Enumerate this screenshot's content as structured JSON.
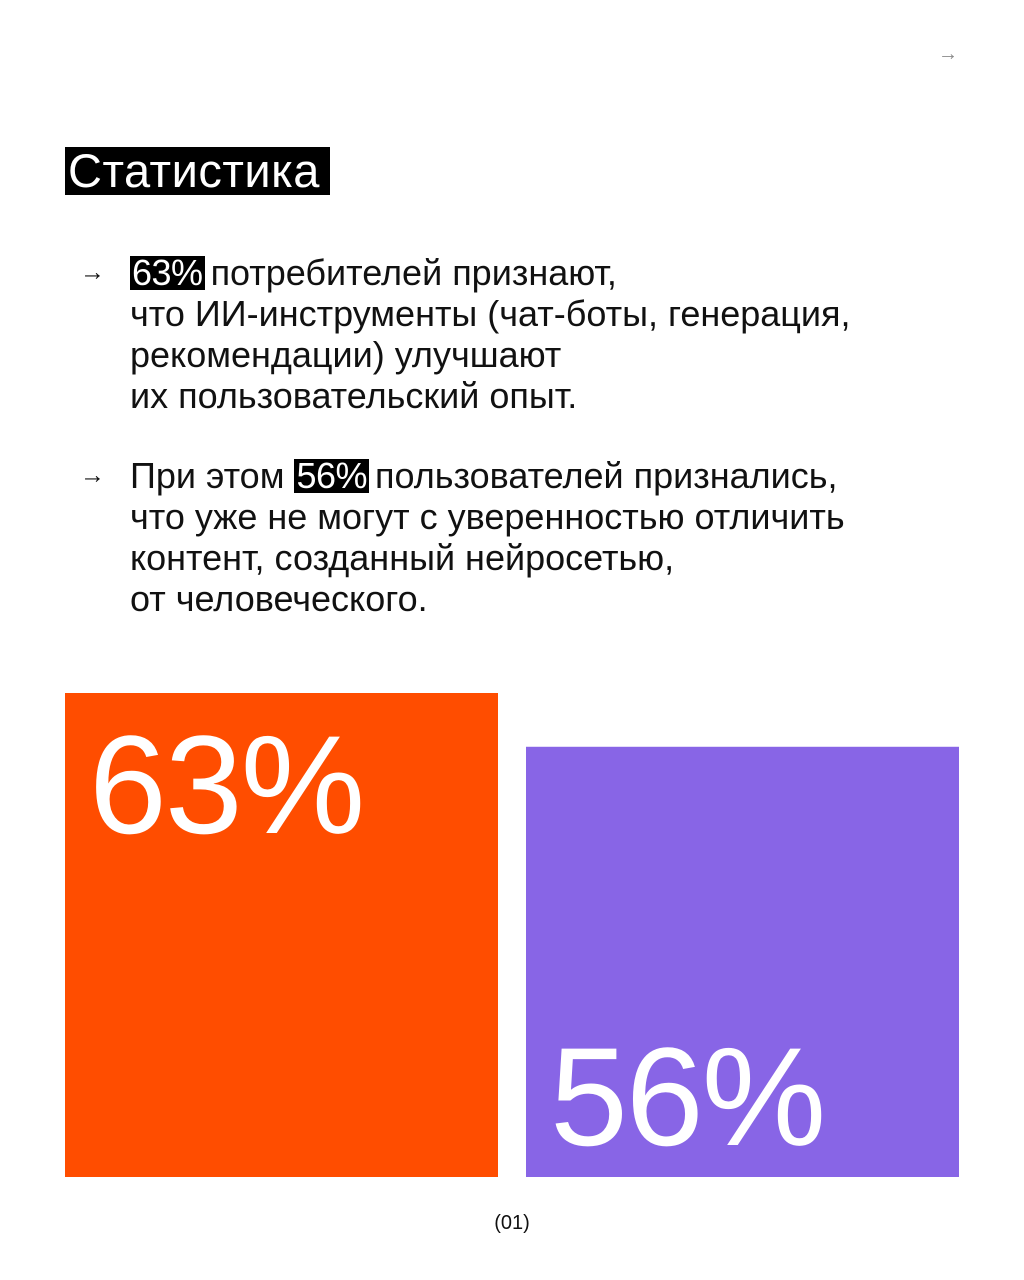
{
  "nav": {
    "next_icon": "arrow-right-icon",
    "next_glyph": "→"
  },
  "title": "Статистика",
  "bullets": [
    {
      "icon": "arrow-right-icon",
      "glyph": "→",
      "highlight": "63%",
      "lead": "",
      "line1_rest": "потребителей признают,",
      "lines": [
        "что ИИ-инструменты (чат-боты, генерация,",
        "рекомендации) улучшают",
        "их пользовательский опыт."
      ]
    },
    {
      "icon": "arrow-right-icon",
      "glyph": "→",
      "lead": "При этом",
      "highlight": "56%",
      "line1_rest": "пользователей признались,",
      "lines": [
        "что уже не могут с уверенностью отличить",
        "контент, созданный нейросетью,",
        "от человеческого."
      ]
    }
  ],
  "chart_data": {
    "type": "bar",
    "categories": [
      "63%",
      "56%"
    ],
    "values": [
      63,
      56
    ],
    "value_labels": [
      "63%",
      "56%"
    ],
    "colors": [
      "#ff4d00",
      "#8865e6"
    ],
    "ylim": [
      0,
      63
    ],
    "grid": false,
    "title": "",
    "xlabel": "",
    "ylabel": ""
  },
  "page_number": "(01)"
}
